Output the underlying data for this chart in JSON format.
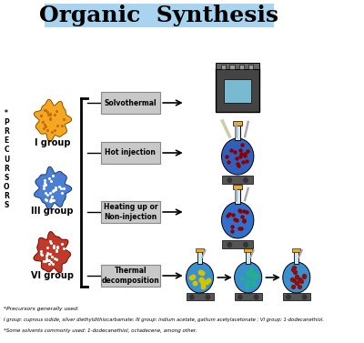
{
  "title": "Organic  Synthesis",
  "title_bg": "#a8d4f0",
  "title_fontsize": 18,
  "precursors_label": "*\nP\nR\nE\nC\nU\nR\nS\nO\nR\nS",
  "groups": [
    "I group",
    "III group",
    "VI group"
  ],
  "group_colors": [
    "#f5a623",
    "#4a7fd4",
    "#c0392b"
  ],
  "methods": [
    "Solvothermal",
    "Hot injection",
    "Heating up or\nNon-injection",
    "Thermal\ndecomposition"
  ],
  "footnote1": "*Precursors generally used:",
  "footnote2": "I group: cuprous iodide, silver diethyldithiocarbamate; III group: indium acetate, gallium acetylacetonate ; VI group: 1-dodecanethiol.",
  "footnote3": "*Some solvents commonly used: 1-dodecanethiol, octadecene, among other.",
  "bg_color": "#ffffff",
  "label_box_color": "#b0b0b0",
  "arrow_color": "#1a1a1a"
}
